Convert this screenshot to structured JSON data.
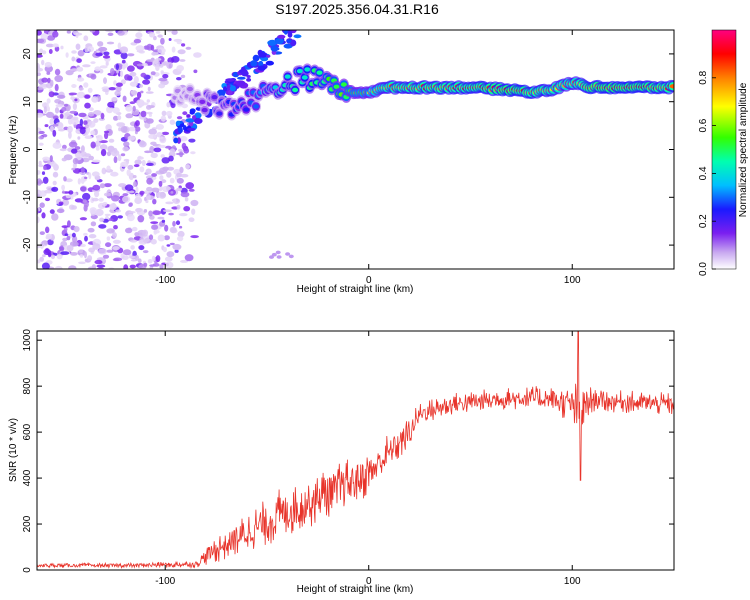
{
  "title": "S197.2025.356.04.31.R16",
  "chart_data": [
    {
      "type": "heatmap",
      "name": "spectrogram",
      "xlabel": "Height of straight line (km)",
      "ylabel": "Frequency (Hz)",
      "xlim": [
        -163,
        150
      ],
      "ylim": [
        -25,
        25
      ],
      "xticks": [
        -100,
        0,
        100
      ],
      "xtick_labels": [
        "-100",
        "0",
        "100"
      ],
      "yticks": [
        -20,
        -10,
        0,
        10,
        20
      ],
      "ytick_labels": [
        "-20",
        "-10",
        "0",
        "10",
        "20"
      ],
      "colorbar": {
        "label": "Normalized spectral amplitude",
        "range": [
          0,
          1
        ],
        "ticks": [
          0.0,
          0.2,
          0.4,
          0.6,
          0.8
        ],
        "tick_labels": [
          "0.0",
          "0.2",
          "0.4",
          "0.6",
          "0.8"
        ]
      },
      "ridge": {
        "x": [
          -90,
          -80,
          -70,
          -60,
          -50,
          -40,
          -30,
          -20,
          -10,
          0,
          10,
          30,
          50,
          70,
          80,
          90,
          100,
          110,
          130,
          150
        ],
        "freq": [
          12,
          10,
          9,
          10,
          12,
          14,
          15,
          14,
          12,
          12,
          13,
          13,
          13,
          12.5,
          12,
          12.5,
          14,
          13,
          13,
          13
        ],
        "amplitude": [
          0.1,
          0.2,
          0.25,
          0.3,
          0.35,
          0.45,
          0.5,
          0.55,
          0.6,
          0.65,
          0.85,
          0.9,
          0.9,
          0.95,
          0.9,
          0.85,
          0.8,
          0.95,
          0.95,
          0.9
        ]
      },
      "noise_region_x": [
        -163,
        -87
      ]
    },
    {
      "type": "line",
      "name": "snr",
      "xlabel": "Height of straight line (km)",
      "ylabel": "SNR (10 * v/v)",
      "xlim": [
        -163,
        150
      ],
      "ylim": [
        0,
        1040
      ],
      "xticks": [
        -100,
        0,
        100
      ],
      "xtick_labels": [
        "-100",
        "0",
        "100"
      ],
      "yticks": [
        0,
        200,
        400,
        600,
        800,
        1000
      ],
      "ytick_labels": [
        "0",
        "200",
        "400",
        "600",
        "800",
        "1000"
      ],
      "color": "#e8342b",
      "envelope": {
        "x": [
          -163,
          -120,
          -85,
          -75,
          -60,
          -40,
          -20,
          0,
          10,
          20,
          25,
          40,
          60,
          80,
          90,
          100,
          103,
          110,
          130,
          150
        ],
        "mean": [
          20,
          20,
          25,
          90,
          160,
          260,
          330,
          420,
          510,
          600,
          680,
          720,
          740,
          750,
          740,
          720,
          700,
          740,
          730,
          720
        ],
        "spread": [
          10,
          10,
          15,
          60,
          90,
          120,
          120,
          100,
          90,
          70,
          50,
          50,
          50,
          50,
          60,
          80,
          160,
          50,
          50,
          50
        ]
      },
      "peak": {
        "x": 103,
        "value": 1040
      },
      "dip": {
        "x": 104,
        "value": 390
      }
    }
  ]
}
